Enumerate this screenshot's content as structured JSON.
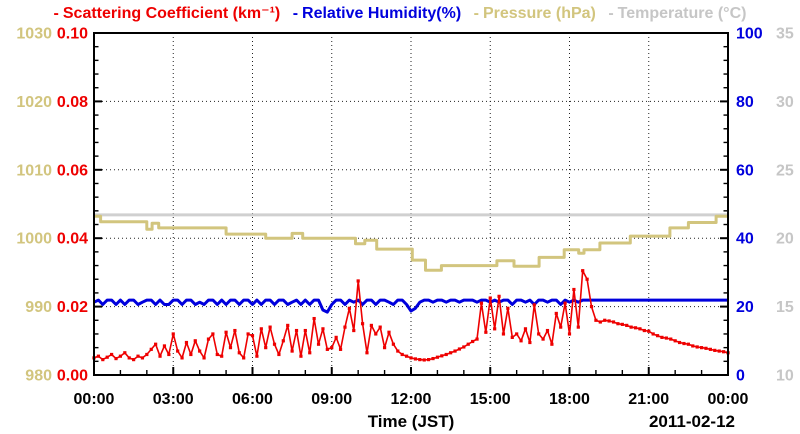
{
  "legend_dash": "-",
  "legend": [
    {
      "label": "Scattering Coefficient (km⁻¹)",
      "color": "#ee0000"
    },
    {
      "label": "Relative Humidity(%)",
      "color": "#0000dd"
    },
    {
      "label": "Pressure (hPa)",
      "color": "#d2c57e"
    },
    {
      "label": "Temperature (°C)",
      "color": "#c6c6c6"
    }
  ],
  "xaxis": {
    "label": "Time (JST)",
    "date": "2011-02-12",
    "ticks": [
      "00:00",
      "03:00",
      "06:00",
      "09:00",
      "12:00",
      "15:00",
      "18:00",
      "21:00",
      "00:00"
    ],
    "minor_ticks_per_hour": 1
  },
  "yaxes": {
    "pressure": {
      "side": "outer-left",
      "color": "#d2c57e",
      "min": 980,
      "max": 1030,
      "ticks": [
        "1030",
        "1020",
        "1010",
        "1000",
        "990",
        "980"
      ]
    },
    "scattering": {
      "side": "inner-left",
      "color": "#ee0000",
      "min": 0,
      "max": 0.1,
      "ticks": [
        "0.10",
        "0.08",
        "0.06",
        "0.04",
        "0.02",
        "0.00"
      ]
    },
    "humidity": {
      "side": "inner-right",
      "color": "#0000dd",
      "min": 0,
      "max": 100,
      "ticks": [
        "100",
        "80",
        "60",
        "40",
        "20",
        "0"
      ]
    },
    "temperature": {
      "side": "outer-right",
      "color": "#c6c6c6",
      "min": 10,
      "max": 35,
      "ticks": [
        "35",
        "30",
        "25",
        "20",
        "15",
        "10"
      ]
    }
  },
  "chart_data": {
    "type": "line",
    "title": "",
    "xlabel": "Time (JST)",
    "date": "2011-02-12",
    "x_range_hours": [
      0,
      24
    ],
    "grid": "dotted lines at every 3-hour and every major y division",
    "legend_position": "top",
    "series": [
      {
        "name": "Temperature",
        "axis": "temperature",
        "color": "#d0d0d0",
        "width": 3,
        "points": [
          [
            0,
            21.7
          ],
          [
            24,
            21.7
          ]
        ]
      },
      {
        "name": "Pressure",
        "axis": "pressure",
        "color": "#d2c57e",
        "width": 3,
        "points": [
          [
            0,
            1003.2
          ],
          [
            0.25,
            1003.2
          ],
          [
            0.25,
            1002.4
          ],
          [
            2.0,
            1002.4
          ],
          [
            2.0,
            1001.3
          ],
          [
            2.2,
            1001.3
          ],
          [
            2.2,
            1002.2
          ],
          [
            2.45,
            1002.2
          ],
          [
            2.45,
            1001.5
          ],
          [
            5.0,
            1001.5
          ],
          [
            5.0,
            1000.6
          ],
          [
            6.5,
            1000.6
          ],
          [
            6.5,
            1000.0
          ],
          [
            7.5,
            1000.0
          ],
          [
            7.5,
            1000.7
          ],
          [
            7.9,
            1000.7
          ],
          [
            7.9,
            1000.0
          ],
          [
            9.9,
            1000.0
          ],
          [
            9.9,
            999.2
          ],
          [
            10.25,
            999.2
          ],
          [
            10.25,
            999.7
          ],
          [
            10.7,
            999.7
          ],
          [
            10.7,
            998.4
          ],
          [
            12.05,
            998.4
          ],
          [
            12.05,
            996.8
          ],
          [
            12.55,
            996.8
          ],
          [
            12.55,
            995.3
          ],
          [
            13.15,
            995.3
          ],
          [
            13.15,
            996.0
          ],
          [
            15.25,
            996.0
          ],
          [
            15.25,
            996.7
          ],
          [
            15.9,
            996.7
          ],
          [
            15.9,
            995.9
          ],
          [
            16.85,
            995.9
          ],
          [
            16.85,
            997.2
          ],
          [
            17.8,
            997.2
          ],
          [
            17.8,
            998.3
          ],
          [
            18.35,
            998.3
          ],
          [
            18.35,
            997.8
          ],
          [
            18.55,
            997.8
          ],
          [
            18.55,
            998.3
          ],
          [
            19.15,
            998.3
          ],
          [
            19.15,
            999.3
          ],
          [
            20.3,
            999.3
          ],
          [
            20.3,
            1000.3
          ],
          [
            21.8,
            1000.3
          ],
          [
            21.8,
            1001.5
          ],
          [
            22.5,
            1001.5
          ],
          [
            22.5,
            1002.3
          ],
          [
            23.55,
            1002.3
          ],
          [
            23.55,
            1003.2
          ],
          [
            24,
            1003.2
          ]
        ]
      },
      {
        "name": "Relative Humidity",
        "axis": "humidity",
        "color": "#0000dd",
        "width": 3,
        "x_step_hours": 0.16667,
        "values": [
          21.3,
          21.9,
          20.6,
          21.9,
          21.9,
          20.6,
          21.9,
          20.6,
          21.9,
          21.9,
          20.6,
          21.3,
          21.9,
          21.9,
          20.6,
          21.9,
          20.6,
          20.6,
          21.9,
          21.9,
          20.6,
          21.9,
          21.9,
          20.6,
          21.3,
          20.6,
          21.9,
          21.9,
          20.6,
          21.9,
          20.6,
          21.9,
          21.9,
          20.6,
          21.9,
          21.9,
          20.6,
          21.9,
          20.6,
          21.9,
          21.9,
          20.6,
          21.9,
          21.9,
          20.6,
          21.3,
          21.9,
          20.6,
          21.9,
          20.6,
          21.9,
          21.9,
          19.0,
          18.4,
          20.6,
          21.9,
          21.9,
          20.6,
          21.9,
          21.3,
          21.9,
          20.6,
          21.9,
          21.9,
          20.6,
          21.9,
          21.9,
          21.3,
          20.6,
          21.9,
          21.9,
          20.6,
          18.7,
          19.5,
          21.3,
          21.9,
          21.9,
          21.3,
          21.9,
          21.9,
          21.3,
          21.9,
          21.9,
          21.3,
          21.9,
          21.9,
          21.9,
          21.3,
          21.9,
          21.9,
          21.3,
          21.9,
          21.3,
          21.9,
          21.9,
          20.6,
          21.9,
          21.9,
          21.3,
          21.9,
          20.6,
          21.9,
          21.9,
          21.3,
          21.9,
          21.9,
          20.6,
          21.9,
          21.3,
          21.9,
          21.3,
          21.9,
          21.9,
          21.9,
          21.9,
          21.9,
          21.9,
          21.9,
          21.9,
          21.9,
          21.9,
          21.9,
          21.9,
          21.9,
          21.9,
          21.9,
          21.9,
          21.9,
          21.9,
          21.9,
          21.9,
          21.9,
          21.9,
          21.9,
          21.9,
          21.9,
          21.9,
          21.9,
          21.9,
          21.9,
          21.9,
          21.9,
          21.9,
          21.9,
          21.9
        ]
      },
      {
        "name": "Scattering Coefficient",
        "axis": "scattering",
        "color": "#ee0000",
        "width": 1.6,
        "markers": true,
        "x_step_hours": 0.16667,
        "values": [
          0.005,
          0.0055,
          0.0045,
          0.0052,
          0.006,
          0.0048,
          0.0055,
          0.0065,
          0.005,
          0.0045,
          0.0055,
          0.005,
          0.006,
          0.0075,
          0.009,
          0.0055,
          0.0085,
          0.006,
          0.012,
          0.007,
          0.005,
          0.0095,
          0.006,
          0.01,
          0.007,
          0.005,
          0.0105,
          0.012,
          0.006,
          0.0055,
          0.0125,
          0.008,
          0.013,
          0.0065,
          0.005,
          0.012,
          0.0115,
          0.0055,
          0.0135,
          0.008,
          0.014,
          0.009,
          0.006,
          0.01,
          0.0145,
          0.007,
          0.013,
          0.0055,
          0.013,
          0.0065,
          0.0165,
          0.009,
          0.0135,
          0.0075,
          0.008,
          0.011,
          0.0075,
          0.014,
          0.0195,
          0.013,
          0.0275,
          0.015,
          0.0065,
          0.0145,
          0.012,
          0.014,
          0.008,
          0.0125,
          0.009,
          0.007,
          0.006,
          0.0055,
          0.005,
          0.0047,
          0.0045,
          0.0044,
          0.0045,
          0.0048,
          0.0052,
          0.0056,
          0.006,
          0.0065,
          0.007,
          0.0076,
          0.0082,
          0.009,
          0.0098,
          0.0105,
          0.021,
          0.0125,
          0.0225,
          0.0135,
          0.023,
          0.012,
          0.0195,
          0.011,
          0.012,
          0.01,
          0.0135,
          0.0095,
          0.0205,
          0.012,
          0.0105,
          0.013,
          0.009,
          0.018,
          0.014,
          0.021,
          0.012,
          0.025,
          0.014,
          0.0305,
          0.028,
          0.02,
          0.016,
          0.0155,
          0.016,
          0.0158,
          0.0155,
          0.015,
          0.0148,
          0.0145,
          0.014,
          0.0138,
          0.0135,
          0.013,
          0.0128,
          0.012,
          0.0115,
          0.011,
          0.0108,
          0.0105,
          0.01,
          0.0095,
          0.0092,
          0.009,
          0.0085,
          0.0082,
          0.008,
          0.0078,
          0.0075,
          0.0072,
          0.007,
          0.0068,
          0.0065
        ]
      }
    ]
  }
}
